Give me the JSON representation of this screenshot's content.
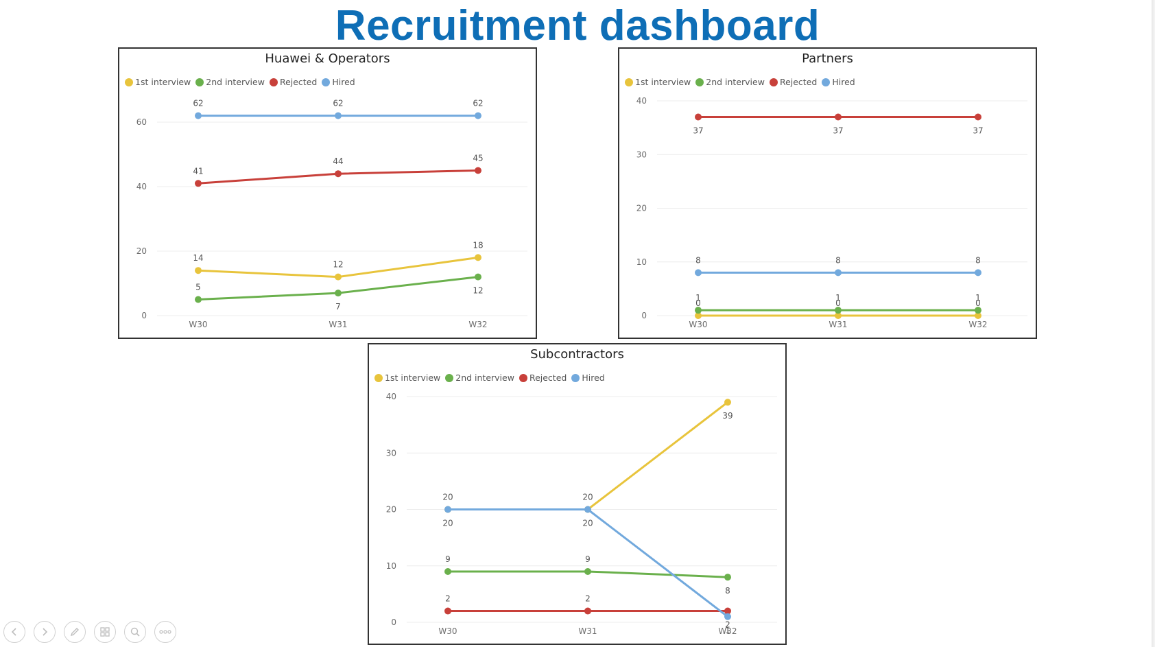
{
  "page": {
    "title": "Recruitment dashboard"
  },
  "legend_colors": {
    "1st interview": "#e8c43c",
    "2nd interview": "#6ab04c",
    "Rejected": "#c8403a",
    "Hired": "#72a9dd"
  },
  "chart_data": [
    {
      "type": "line",
      "title": "Huawei & Operators",
      "categories": [
        "W30",
        "W31",
        "W32"
      ],
      "ylim": [
        0,
        70
      ],
      "yticks": [
        0,
        20,
        40,
        60
      ],
      "grid": true,
      "legend_position": "top-left",
      "series": [
        {
          "name": "1st interview",
          "values": [
            14,
            12,
            18
          ]
        },
        {
          "name": "2nd interview",
          "values": [
            5,
            7,
            12
          ]
        },
        {
          "name": "Rejected",
          "values": [
            41,
            44,
            45
          ]
        },
        {
          "name": "Hired",
          "values": [
            62,
            62,
            62
          ]
        }
      ]
    },
    {
      "type": "line",
      "title": "Partners",
      "categories": [
        "W30",
        "W31",
        "W32"
      ],
      "ylim": [
        0,
        40
      ],
      "yticks": [
        0,
        10,
        20,
        30,
        40
      ],
      "grid": true,
      "legend_position": "top-left",
      "series": [
        {
          "name": "1st interview",
          "values": [
            0,
            0,
            0
          ]
        },
        {
          "name": "2nd interview",
          "values": [
            1,
            1,
            1
          ]
        },
        {
          "name": "Rejected",
          "values": [
            37,
            37,
            37
          ]
        },
        {
          "name": "Hired",
          "values": [
            8,
            8,
            8
          ]
        }
      ]
    },
    {
      "type": "line",
      "title": "Subcontractors",
      "categories": [
        "W30",
        "W31",
        "W32"
      ],
      "ylim": [
        0,
        40
      ],
      "yticks": [
        0,
        10,
        20,
        30,
        40
      ],
      "grid": true,
      "legend_position": "top-left",
      "series": [
        {
          "name": "1st interview",
          "values": [
            20,
            20,
            39
          ]
        },
        {
          "name": "2nd interview",
          "values": [
            9,
            9,
            8
          ]
        },
        {
          "name": "Rejected",
          "values": [
            2,
            2,
            2
          ]
        },
        {
          "name": "Hired",
          "values": [
            20,
            20,
            1
          ]
        }
      ]
    }
  ],
  "toolbar": {
    "buttons": [
      {
        "icon": "previous-slide-icon"
      },
      {
        "icon": "next-slide-icon"
      },
      {
        "icon": "pen-icon"
      },
      {
        "icon": "slides-grid-icon"
      },
      {
        "icon": "zoom-icon"
      },
      {
        "icon": "more-options-icon"
      }
    ]
  }
}
